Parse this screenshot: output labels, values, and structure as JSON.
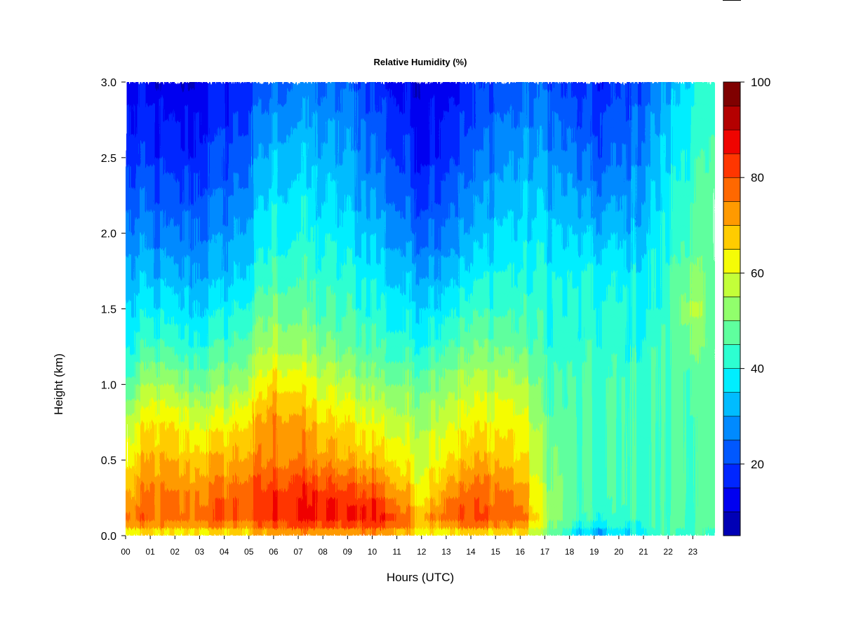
{
  "chart_data": {
    "type": "heatmap",
    "title": "Relative Humidity (%)",
    "xlabel": "Hours (UTC)",
    "ylabel": "Height (km)",
    "x_ticks": [
      "00",
      "01",
      "02",
      "03",
      "04",
      "05",
      "06",
      "07",
      "08",
      "09",
      "10",
      "11",
      "12",
      "13",
      "14",
      "15",
      "16",
      "17",
      "18",
      "19",
      "20",
      "21",
      "22",
      "23"
    ],
    "y_ticks": [
      "0.0",
      "0.5",
      "1.0",
      "1.5",
      "2.0",
      "2.5",
      "3.0"
    ],
    "xlim": [
      0,
      23.9
    ],
    "ylim": [
      0,
      3.0
    ],
    "colorbar": {
      "ticks": [
        "20",
        "40",
        "60",
        "80",
        "100"
      ],
      "tick_values": [
        20,
        40,
        60,
        80,
        100
      ],
      "range": [
        5,
        100
      ],
      "levels": [
        5,
        10,
        15,
        20,
        25,
        30,
        35,
        40,
        45,
        50,
        55,
        60,
        65,
        70,
        75,
        80,
        85,
        90,
        95,
        100
      ],
      "colors": [
        "#00007f",
        "#0000b5",
        "#0000f0",
        "#0026ff",
        "#0058ff",
        "#008aff",
        "#00bcff",
        "#00eeff",
        "#2dffd1",
        "#5fff9e",
        "#91ff6c",
        "#c3ff39",
        "#f5fc06",
        "#ffcc00",
        "#ff9a00",
        "#ff6800",
        "#ff3600",
        "#ef0400",
        "#b40000",
        "#7f0000"
      ]
    },
    "times": [
      0,
      1,
      2,
      3,
      4,
      5,
      6,
      7,
      8,
      9,
      10,
      11,
      12,
      13,
      14,
      15,
      16,
      17,
      18,
      19,
      20,
      21,
      22,
      23,
      23.9
    ],
    "heights": [
      0.0,
      0.1,
      0.25,
      0.5,
      0.75,
      1.0,
      1.25,
      1.5,
      1.75,
      2.0,
      2.5,
      3.0
    ],
    "values": [
      [
        55,
        76,
        70,
        62,
        55,
        45,
        38,
        34,
        30,
        26,
        18,
        12
      ],
      [
        60,
        78,
        76,
        70,
        64,
        54,
        44,
        38,
        32,
        26,
        18,
        12
      ],
      [
        58,
        76,
        74,
        68,
        62,
        52,
        42,
        36,
        30,
        24,
        16,
        10
      ],
      [
        62,
        78,
        76,
        68,
        60,
        50,
        42,
        36,
        30,
        26,
        18,
        12
      ],
      [
        62,
        78,
        78,
        70,
        62,
        52,
        44,
        38,
        32,
        28,
        20,
        14
      ],
      [
        62,
        80,
        80,
        72,
        66,
        56,
        48,
        42,
        36,
        32,
        24,
        18
      ],
      [
        68,
        84,
        84,
        76,
        74,
        66,
        56,
        50,
        44,
        40,
        34,
        24
      ],
      [
        70,
        86,
        86,
        76,
        72,
        64,
        54,
        48,
        44,
        40,
        34,
        26
      ],
      [
        68,
        85,
        84,
        72,
        66,
        58,
        50,
        44,
        42,
        38,
        32,
        24
      ],
      [
        68,
        84,
        82,
        70,
        64,
        56,
        48,
        44,
        40,
        36,
        30,
        24
      ],
      [
        72,
        88,
        84,
        70,
        62,
        54,
        46,
        42,
        38,
        34,
        26,
        20
      ],
      [
        66,
        82,
        74,
        64,
        58,
        50,
        42,
        38,
        34,
        28,
        20,
        14
      ],
      [
        62,
        72,
        64,
        60,
        56,
        50,
        42,
        36,
        30,
        24,
        16,
        12
      ],
      [
        62,
        80,
        76,
        66,
        60,
        54,
        46,
        40,
        34,
        28,
        20,
        14
      ],
      [
        62,
        80,
        78,
        68,
        62,
        56,
        48,
        42,
        36,
        30,
        22,
        16
      ],
      [
        62,
        80,
        78,
        70,
        64,
        58,
        50,
        44,
        40,
        36,
        28,
        22
      ],
      [
        62,
        78,
        74,
        66,
        62,
        56,
        48,
        44,
        40,
        36,
        30,
        22
      ],
      [
        50,
        58,
        56,
        52,
        50,
        46,
        44,
        42,
        40,
        36,
        30,
        24
      ],
      [
        38,
        46,
        46,
        46,
        46,
        44,
        42,
        40,
        38,
        34,
        26,
        18
      ],
      [
        28,
        40,
        44,
        44,
        44,
        44,
        42,
        40,
        38,
        32,
        22,
        16
      ],
      [
        34,
        42,
        44,
        44,
        44,
        44,
        42,
        40,
        38,
        32,
        24,
        18
      ],
      [
        38,
        44,
        44,
        44,
        44,
        44,
        42,
        40,
        38,
        34,
        28,
        22
      ],
      [
        44,
        46,
        46,
        46,
        46,
        44,
        44,
        42,
        42,
        40,
        36,
        30
      ],
      [
        46,
        46,
        46,
        46,
        46,
        48,
        52,
        58,
        52,
        48,
        44,
        40
      ],
      [
        40,
        42,
        42,
        42,
        42,
        42,
        42,
        42,
        42,
        42,
        42,
        40
      ]
    ]
  }
}
